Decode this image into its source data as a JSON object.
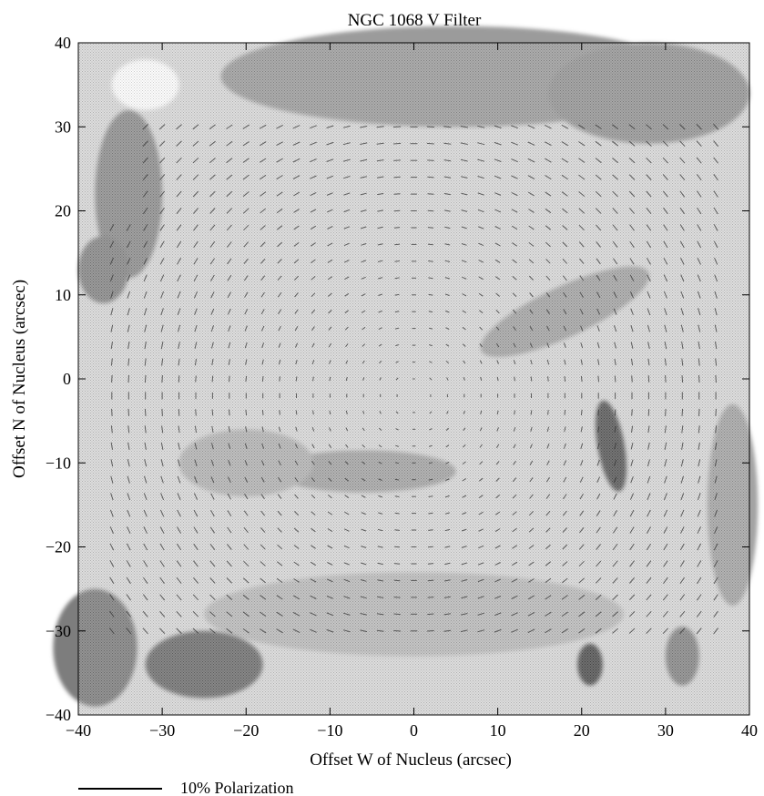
{
  "chart_data": {
    "type": "scatter",
    "title": "NGC 1068 V Filter",
    "xlabel": "Offset W of Nucleus  (arcsec)",
    "ylabel": "Offset  N of  Nucleus (arcsec)",
    "xlim": [
      -40,
      40
    ],
    "ylim": [
      -40,
      40
    ],
    "xticks": [
      "−40",
      "−30",
      "−20",
      "−10",
      "0",
      "10",
      "20",
      "30",
      "40"
    ],
    "yticks": [
      "−40",
      "−30",
      "−20",
      "−10",
      "0",
      "10",
      "20",
      "30",
      "40"
    ],
    "xtick_values": [
      -40,
      -30,
      -20,
      -10,
      0,
      10,
      20,
      30,
      40
    ],
    "ytick_values": [
      -40,
      -30,
      -20,
      -10,
      0,
      10,
      20,
      30,
      40
    ],
    "legend": {
      "label": "10% Polarization",
      "reference_percent": 10,
      "placement": "bottom-left"
    },
    "background": "grayscale stippled intensity image",
    "vector_field": "polarization vectors perpendicular to radius (centrosymmetric pattern about nucleus)",
    "vector_grid_spacing": 2,
    "vector_region": {
      "x": [
        -36,
        36
      ],
      "y": [
        -30,
        30
      ]
    },
    "polarization_center": [
      0,
      -2
    ],
    "intensity_features": [
      {
        "x": 23.5,
        "y": -8,
        "sx": 1.6,
        "sy": 5.5,
        "level": 0.85,
        "rot_deg": -10
      },
      {
        "x": 21,
        "y": -34,
        "sx": 1.5,
        "sy": 2.5,
        "level": 0.9,
        "rot_deg": 0
      },
      {
        "x": 32,
        "y": -33,
        "sx": 2.0,
        "sy": 3.5,
        "level": 0.55,
        "rot_deg": 0
      },
      {
        "x": -25,
        "y": -34,
        "sx": 7,
        "sy": 4,
        "level": 0.7,
        "rot_deg": 0
      },
      {
        "x": -38,
        "y": -32,
        "sx": 5,
        "sy": 7,
        "level": 0.6,
        "rot_deg": 0
      },
      {
        "x": -34,
        "y": 22,
        "sx": 4,
        "sy": 10,
        "level": 0.5,
        "rot_deg": 0
      },
      {
        "x": -37,
        "y": 13,
        "sx": 3,
        "sy": 4,
        "level": 0.55,
        "rot_deg": 0
      },
      {
        "x": 5,
        "y": 36,
        "sx": 28,
        "sy": 6,
        "level": 0.4,
        "rot_deg": 0
      },
      {
        "x": 28,
        "y": 34,
        "sx": 12,
        "sy": 6,
        "level": 0.45,
        "rot_deg": 0
      },
      {
        "x": 18,
        "y": 8,
        "sx": 11,
        "sy": 3,
        "level": 0.35,
        "rot_deg": -25
      },
      {
        "x": -6,
        "y": -11,
        "sx": 11,
        "sy": 2.5,
        "level": 0.35,
        "rot_deg": 0
      },
      {
        "x": 0,
        "y": -28,
        "sx": 25,
        "sy": 5,
        "level": 0.2,
        "rot_deg": 0
      },
      {
        "x": 38,
        "y": -15,
        "sx": 3,
        "sy": 12,
        "level": 0.35,
        "rot_deg": 0
      },
      {
        "x": -32,
        "y": 35,
        "sx": 4,
        "sy": 3,
        "level": -0.3,
        "rot_deg": 0
      },
      {
        "x": -20,
        "y": -10,
        "sx": 8,
        "sy": 4,
        "level": 0.25,
        "rot_deg": 0
      }
    ]
  }
}
